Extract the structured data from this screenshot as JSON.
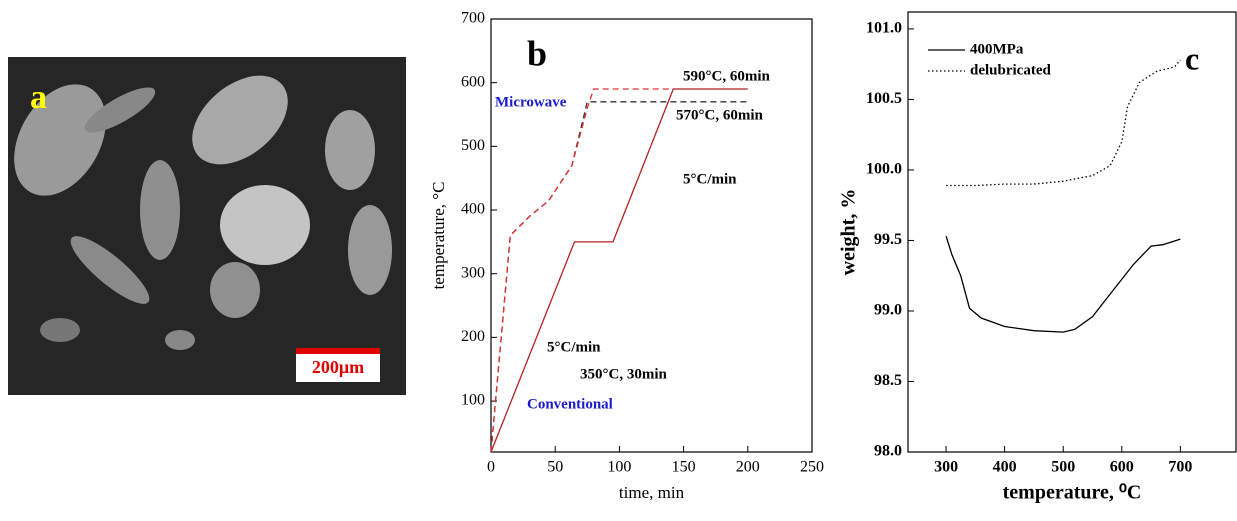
{
  "panel_a": {
    "label": "a",
    "scale_bar": "200μm"
  },
  "chart_data": [
    {
      "type": "line",
      "panel": "b",
      "xlabel": "time, min",
      "ylabel": "temperature, °C",
      "xlim": [
        0,
        250
      ],
      "xticks": [
        0,
        50,
        100,
        150,
        200,
        250
      ],
      "ylim": [
        20,
        700
      ],
      "yticks": [
        100,
        200,
        300,
        400,
        500,
        600,
        700
      ],
      "grid": false,
      "annotations": [
        "b",
        "Microwave",
        "590°C, 60min",
        "570°C, 60min",
        "5°C/min",
        "350°C, 30min",
        "5°C/min",
        "Conventional"
      ],
      "series": [
        {
          "color": "#b22222",
          "dash": "solid",
          "x": [
            0,
            65,
            95,
            142,
            200
          ],
          "values": [
            20,
            350,
            350,
            590,
            590
          ]
        },
        {
          "color": "#333333",
          "dash": "dashed",
          "x": [
            0,
            15,
            30,
            45,
            63,
            75,
            200
          ],
          "values": [
            20,
            360,
            390,
            415,
            470,
            570,
            570
          ]
        },
        {
          "color": "#e03030",
          "dash": "dashed",
          "x": [
            0,
            15,
            30,
            45,
            63,
            75,
            80,
            142
          ],
          "values": [
            20,
            360,
            390,
            415,
            470,
            560,
            590,
            590
          ]
        }
      ]
    },
    {
      "type": "line",
      "panel": "c",
      "xlabel": "temperature, ⁰C",
      "ylabel": "weight, %",
      "xlim": [
        235,
        795
      ],
      "xticks": [
        300,
        400,
        500,
        600,
        700
      ],
      "ylim": [
        98.0,
        101.12
      ],
      "yticks": [
        {
          "value": 98,
          "label": "98.0"
        },
        98.5,
        {
          "value": 99,
          "label": "99.0"
        },
        99.5,
        {
          "value": 100,
          "label": "100.0"
        },
        100.5,
        {
          "value": 101,
          "label": "101.0"
        }
      ],
      "grid": false,
      "legend": "upper left",
      "series": [
        {
          "name": "400MPa",
          "color": "#000000",
          "dash": "solid",
          "x": [
            300,
            310,
            325,
            340,
            360,
            400,
            450,
            500,
            520,
            550,
            580,
            620,
            650,
            670,
            700
          ],
          "values": [
            99.53,
            99.4,
            99.25,
            99.02,
            98.95,
            98.89,
            98.86,
            98.85,
            98.87,
            98.96,
            99.12,
            99.33,
            99.46,
            99.47,
            99.51
          ]
        },
        {
          "name": "delubricated",
          "color": "#000000",
          "dash": "dotted",
          "x": [
            300,
            350,
            400,
            450,
            500,
            550,
            580,
            600,
            610,
            630,
            660,
            690,
            700
          ],
          "values": [
            99.89,
            99.89,
            99.9,
            99.9,
            99.92,
            99.96,
            100.03,
            100.2,
            100.45,
            100.62,
            100.7,
            100.73,
            100.78
          ]
        }
      ]
    }
  ]
}
